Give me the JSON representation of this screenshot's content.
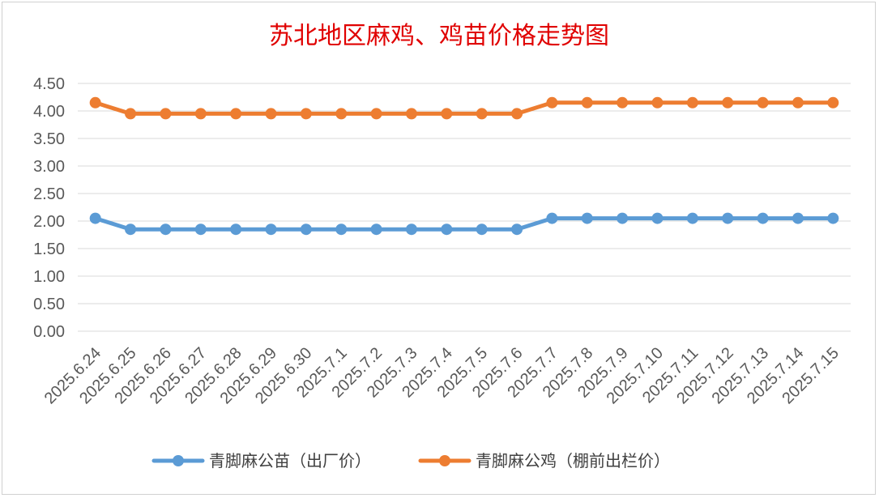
{
  "chart_data": {
    "type": "line",
    "title": "苏北地区麻鸡、鸡苗价格走势图",
    "xlabel": "",
    "ylabel": "",
    "ylim": [
      0,
      4.5
    ],
    "yticks": [
      "0.00",
      "0.50",
      "1.00",
      "1.50",
      "2.00",
      "2.50",
      "3.00",
      "3.50",
      "4.00",
      "4.50"
    ],
    "grid": true,
    "legend_position": "bottom",
    "categories": [
      "2025.6.24",
      "2025.6.25",
      "2025.6.26",
      "2025.6.27",
      "2025.6.28",
      "2025.6.29",
      "2025.6.30",
      "2025.7.1",
      "2025.7.2",
      "2025.7.3",
      "2025.7.4",
      "2025.7.5",
      "2025.7.6",
      "2025.7.7",
      "2025.7.8",
      "2025.7.9",
      "2025.7.10",
      "2025.7.11",
      "2025.7.12",
      "2025.7.13",
      "2025.7.14",
      "2025.7.15"
    ],
    "series": [
      {
        "name": "青脚麻公苗（出厂价）",
        "color": "#5b9bd5",
        "values": [
          2.05,
          1.85,
          1.85,
          1.85,
          1.85,
          1.85,
          1.85,
          1.85,
          1.85,
          1.85,
          1.85,
          1.85,
          1.85,
          2.05,
          2.05,
          2.05,
          2.05,
          2.05,
          2.05,
          2.05,
          2.05,
          2.05
        ]
      },
      {
        "name": "青脚麻公鸡（棚前出栏价）",
        "color": "#ed7d31",
        "values": [
          4.15,
          3.95,
          3.95,
          3.95,
          3.95,
          3.95,
          3.95,
          3.95,
          3.95,
          3.95,
          3.95,
          3.95,
          3.95,
          4.15,
          4.15,
          4.15,
          4.15,
          4.15,
          4.15,
          4.15,
          4.15,
          4.15
        ]
      }
    ]
  }
}
